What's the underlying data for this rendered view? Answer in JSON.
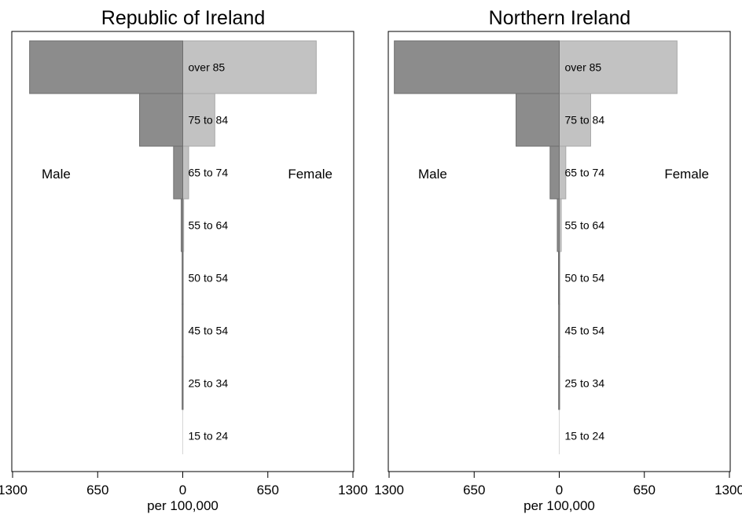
{
  "chart_data": [
    {
      "type": "bar",
      "orientation": "horizontal",
      "layout": "population-pyramid",
      "title": "Republic of Ireland",
      "xlabel": "per 100,000",
      "xlim": [
        -1300,
        1300
      ],
      "x_tick_labels": [
        "1300",
        "650",
        "0",
        "650",
        "1300"
      ],
      "x_tick_values": [
        -1300,
        -650,
        0,
        650,
        1300
      ],
      "categories": [
        "over 85",
        "75 to 84",
        "65 to 74",
        "55 to 64",
        "50 to 54",
        "45 to 54",
        "25 to 34",
        "15 to 24"
      ],
      "series": [
        {
          "name": "Male",
          "color": "#8c8c8c",
          "values": [
            1170,
            330,
            70,
            12,
            3,
            1.5,
            1,
            0
          ]
        },
        {
          "name": "Female",
          "color": "#c2c2c2",
          "values": [
            1020,
            245,
            45,
            7,
            2,
            1,
            0.5,
            0
          ]
        }
      ],
      "legend_labels": {
        "male": "Male",
        "female": "Female"
      }
    },
    {
      "type": "bar",
      "orientation": "horizontal",
      "layout": "population-pyramid",
      "title": "Northern Ireland",
      "xlabel": "per 100,000",
      "xlim": [
        -1300,
        1300
      ],
      "x_tick_labels": [
        "1300",
        "650",
        "0",
        "650",
        "1300"
      ],
      "x_tick_values": [
        -1300,
        -650,
        0,
        650,
        1300
      ],
      "categories": [
        "over 85",
        "75 to 84",
        "65 to 74",
        "55 to 64",
        "50 to 54",
        "45 to 54",
        "25 to 34",
        "15 to 24"
      ],
      "series": [
        {
          "name": "Male",
          "color": "#8c8c8c",
          "values": [
            1260,
            330,
            70,
            15,
            6,
            2,
            1,
            0
          ]
        },
        {
          "name": "Female",
          "color": "#c2c2c2",
          "values": [
            900,
            240,
            50,
            15,
            2,
            1,
            0.5,
            0
          ]
        }
      ],
      "legend_labels": {
        "male": "Male",
        "female": "Female"
      }
    }
  ]
}
